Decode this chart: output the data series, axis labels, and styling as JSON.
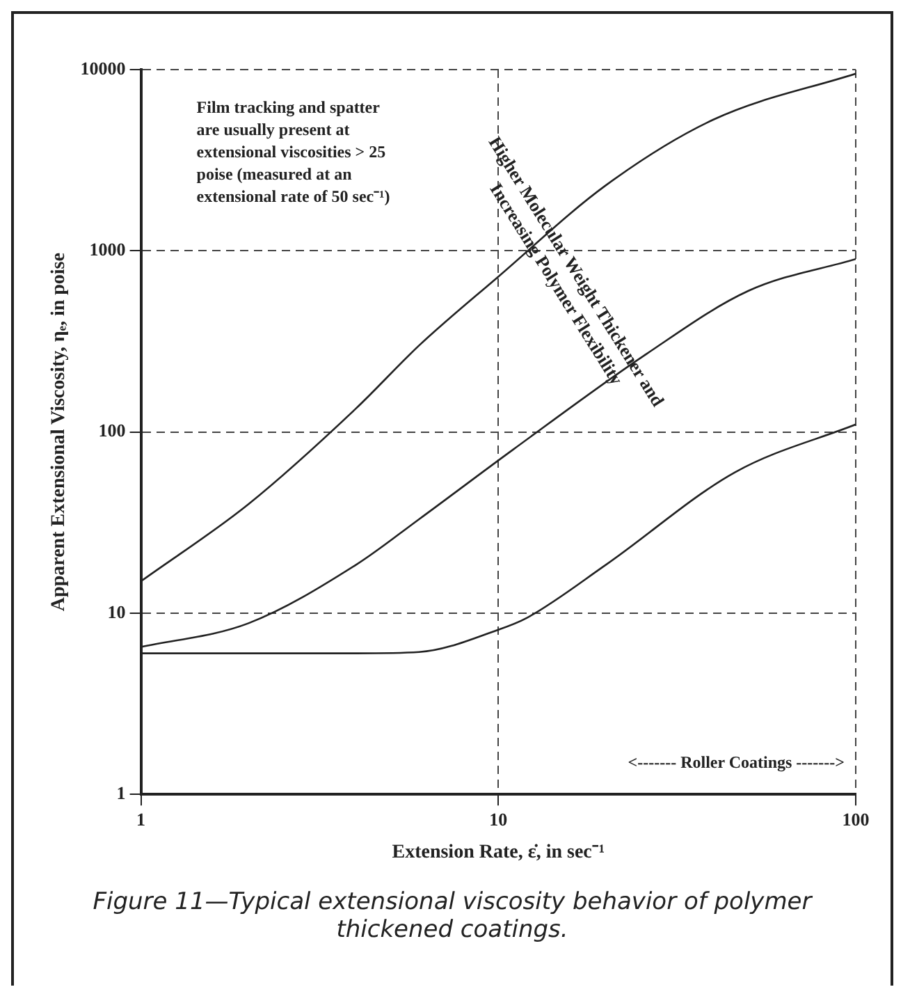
{
  "chart_data": {
    "type": "line",
    "title": "Figure 11—Typical extensional viscosity behavior of polymer thickened coatings.",
    "xlabel": "Extension Rate, ε̇, in sec⁻¹",
    "ylabel": "Apparent Extensional Viscosity, ηₑ, in poise",
    "log": "xy",
    "xlim": [
      1,
      100
    ],
    "ylim": [
      1,
      10000
    ],
    "xticks": [
      1,
      10,
      100
    ],
    "yticks": [
      1,
      10,
      100,
      1000,
      10000
    ],
    "grid": true,
    "marker": "none",
    "line_style": "solid",
    "series": [
      {
        "color": "#222222",
        "x": [
          1,
          2,
          4,
          6,
          10,
          20,
          40,
          100
        ],
        "values": [
          15,
          40,
          135,
          300,
          720,
          2300,
          5300,
          9500
        ]
      },
      {
        "color": "#222222",
        "x": [
          1,
          2,
          4,
          6,
          11,
          26,
          50,
          100
        ],
        "values": [
          6.5,
          8.8,
          18.5,
          33,
          80,
          270,
          600,
          900
        ]
      },
      {
        "color": "#222222",
        "x": [
          1,
          2,
          4,
          6,
          10,
          12,
          20,
          46,
          100
        ],
        "values": [
          6,
          6,
          6,
          6.1,
          8.1,
          9.4,
          18.5,
          60,
          110
        ]
      }
    ],
    "annotations": [
      "Film tracking and spatter are usually present at extensional viscosities > 25 poise (measured at an extensional rate of 50 sec⁻¹)",
      "Higher Molecular Weight Thickener and Increasing Polymer Flexibility",
      "<------- Roller Coatings ------->"
    ]
  }
}
